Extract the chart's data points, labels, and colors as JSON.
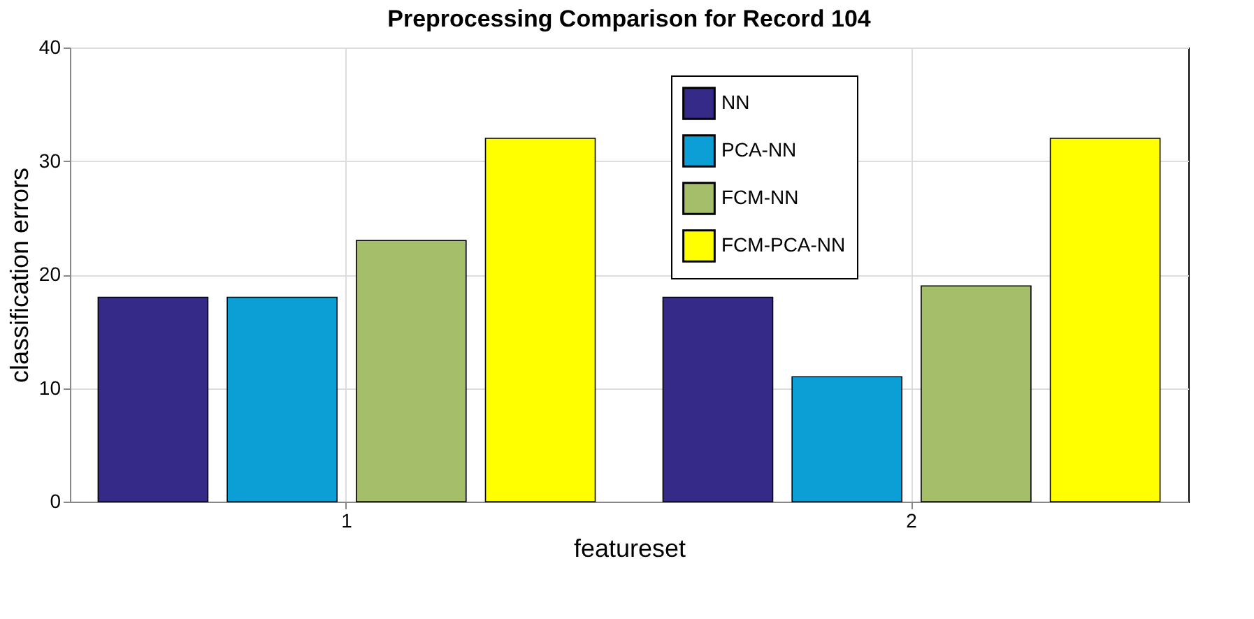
{
  "chart_data": {
    "type": "bar",
    "title": "Preprocessing Comparison for Record 104",
    "xlabel": "featureset",
    "ylabel": "classification errors",
    "categories": [
      "1",
      "2"
    ],
    "series": [
      {
        "name": "NN",
        "color": "#352a87",
        "values": [
          18,
          18
        ]
      },
      {
        "name": "PCA-NN",
        "color": "#0b9fd5",
        "values": [
          18,
          11
        ]
      },
      {
        "name": "FCM-NN",
        "color": "#a5be6a",
        "values": [
          23,
          19
        ]
      },
      {
        "name": "FCM-PCA-NN",
        "color": "#ffff00",
        "values": [
          32,
          32
        ]
      }
    ],
    "ylim": [
      0,
      40
    ],
    "yticks": [
      0,
      10,
      20,
      30,
      40
    ],
    "grid": true,
    "legend": "top right"
  }
}
